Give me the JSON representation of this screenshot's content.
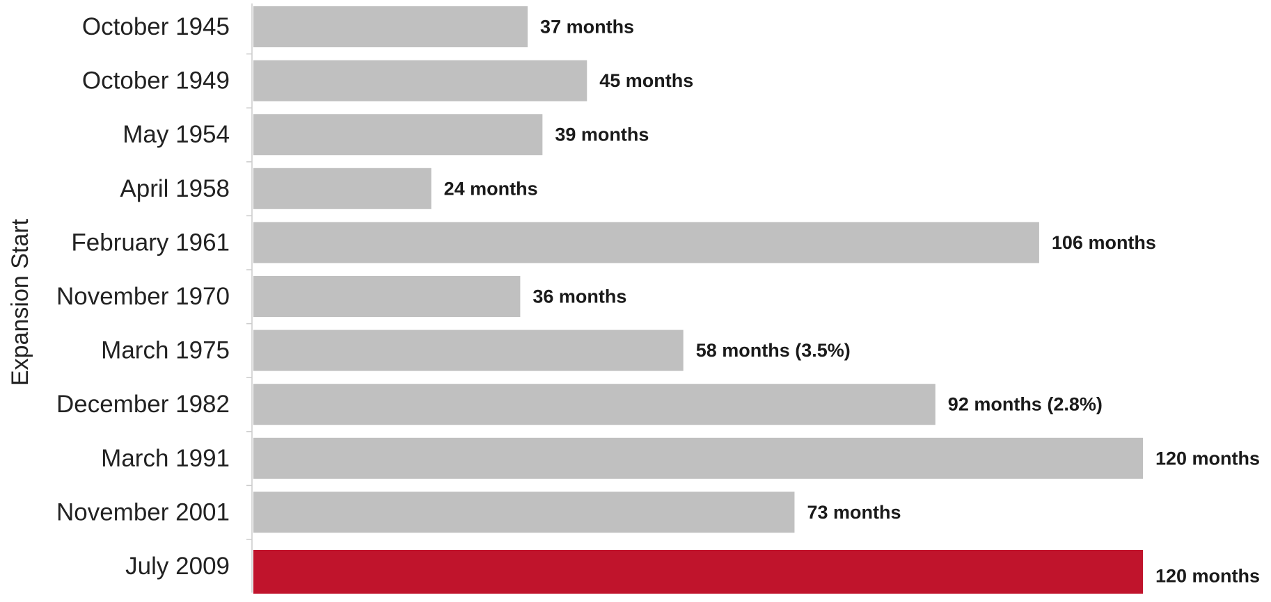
{
  "chart_data": {
    "type": "bar",
    "orientation": "horizontal",
    "ylabel": "Expansion Start",
    "xlabel": "",
    "categories": [
      "October 1945",
      "October 1949",
      "May 1954",
      "April 1958",
      "February 1961",
      "November 1970",
      "March 1975",
      "December 1982",
      "March 1991",
      "November 2001",
      "July 2009"
    ],
    "values": [
      37,
      45,
      39,
      24,
      106,
      36,
      58,
      92,
      120,
      73,
      120
    ],
    "data_labels": [
      "37 months",
      "45 months",
      "39 months",
      "24 months",
      "106 months",
      "36 months",
      "58 months (3.5%)",
      "92 months (2.8%)",
      "120 months",
      "73 months",
      "120 months"
    ],
    "colors": {
      "default": "#c0c0c0",
      "highlight": "#c0142c",
      "axis": "#cccccc"
    },
    "highlight_category": "July 2009",
    "xlim": [
      0,
      120
    ],
    "grid": false,
    "legend": "none"
  }
}
